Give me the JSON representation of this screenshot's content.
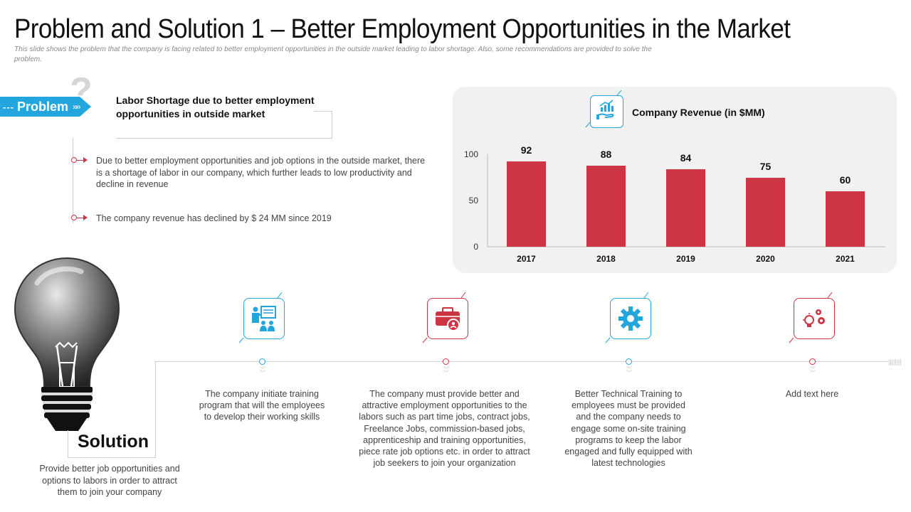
{
  "header": {
    "title": "Problem and Solution 1 – Better Employment Opportunities in the Market",
    "subtitle": "This slide shows the problem that the company is facing related to better employment opportunities in the outside market leading to labor shortage. Also, some recommendations are provided to solve the problem."
  },
  "problem": {
    "tab_prefix": "---",
    "tab_label": "Problem",
    "tab_chevrons": "»»",
    "question_mark": "?",
    "heading": "Labor Shortage due to better employment opportunities in outside market",
    "bullets": [
      "Due to better employment opportunities and job options in the outside market, there is a shortage of labor in our company, which further leads to low productivity and decline in revenue",
      "The company revenue has declined by $ 24 MM since 2019"
    ]
  },
  "chart_data": {
    "type": "bar",
    "title": "Company Revenue (in $MM)",
    "categories": [
      "2017",
      "2018",
      "2019",
      "2020",
      "2021"
    ],
    "values": [
      92,
      88,
      84,
      75,
      60
    ],
    "y_ticks": [
      "0",
      "50",
      "100"
    ],
    "ylim": [
      0,
      100
    ],
    "xlabel": "",
    "ylabel": "",
    "color": "#cd3545"
  },
  "solution": {
    "title": "Solution",
    "description": "Provide better job opportunities and options to labors in order to attract them to join your company",
    "timeline_end": "||||||||"
  },
  "steps": [
    {
      "icon": "training-presentation-icon",
      "color": "blue",
      "text": "The company initiate training program that will the employees to develop their working skills"
    },
    {
      "icon": "briefcase-person-icon",
      "color": "red",
      "text": "The company must provide better and attractive employment opportunities to the labors such as part time jobs, contract jobs, Freelance Jobs, commission-based jobs, apprenticeship and training opportunities, piece rate job options etc. in order to attract job seekers to join your organization"
    },
    {
      "icon": "gear-icon",
      "color": "blue",
      "text": "Better Technical Training to employees must be provided and the company needs to engage some on-site training programs to keep the labor engaged and fully equipped with latest technologies"
    },
    {
      "icon": "bulb-gears-icon",
      "color": "red",
      "text": "Add text here"
    }
  ],
  "colors": {
    "accent_blue": "#23a6dd",
    "accent_red": "#cd3545"
  }
}
